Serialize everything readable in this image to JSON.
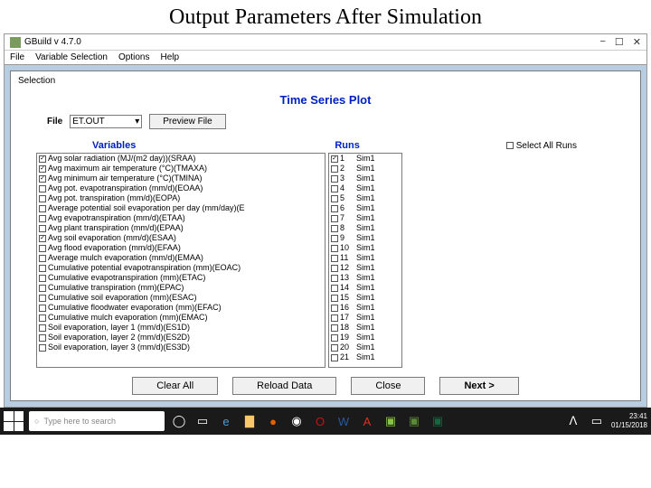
{
  "slide_title": "Output Parameters After Simulation",
  "window": {
    "title": "GBuild v 4.7.0",
    "menus": [
      "File",
      "Variable Selection",
      "Options",
      "Help"
    ]
  },
  "panel": {
    "label": "Selection",
    "plot_title": "Time Series Plot",
    "file_label": "File",
    "file_value": "ET.OUT",
    "preview_btn": "Preview File",
    "variables_header": "Variables",
    "runs_header": "Runs",
    "select_all_label": "Select All Runs"
  },
  "variables": [
    {
      "c": true,
      "t": "Avg solar radiation (MJ/(m2 day))(SRAA)"
    },
    {
      "c": true,
      "t": "Avg maximum air temperature (°C)(TMAXA)"
    },
    {
      "c": true,
      "t": "Avg minimum air temperature (°C)(TMINA)"
    },
    {
      "c": false,
      "t": "Avg pot. evapotranspiration (mm/d)(EOAA)"
    },
    {
      "c": false,
      "t": "Avg pot. transpiration (mm/d)(EOPA)"
    },
    {
      "c": false,
      "t": "Average potential soil evaporation per day  (mm/day)(E"
    },
    {
      "c": false,
      "t": "Avg evapotranspiration (mm/d)(ETAA)"
    },
    {
      "c": false,
      "t": "Avg plant transpiration (mm/d)(EPAA)"
    },
    {
      "c": true,
      "t": "Avg soil evaporation (mm/d)(ESAA)"
    },
    {
      "c": false,
      "t": "Avg flood evaporation (mm/d)(EFAA)"
    },
    {
      "c": false,
      "t": "Average mulch evaporation (mm/d)(EMAA)"
    },
    {
      "c": false,
      "t": "Cumulative potential evapotranspiration (mm)(EOAC)"
    },
    {
      "c": false,
      "t": "Cumulative evapotranspiration (mm)(ETAC)"
    },
    {
      "c": false,
      "t": "Cumulative transpiration (mm)(EPAC)"
    },
    {
      "c": false,
      "t": "Cumulative soil evaporation (mm)(ESAC)"
    },
    {
      "c": false,
      "t": "Cumulative floodwater evaporation (mm)(EFAC)"
    },
    {
      "c": false,
      "t": "Cumulative mulch evaporation (mm)(EMAC)"
    },
    {
      "c": false,
      "t": "Soil evaporation, layer 1 (mm/d)(ES1D)"
    },
    {
      "c": false,
      "t": "Soil evaporation, layer 2 (mm/d)(ES2D)"
    },
    {
      "c": false,
      "t": "Soil evaporation, layer 3 (mm/d)(ES3D)"
    }
  ],
  "runs": [
    {
      "c": true,
      "n": "1",
      "t": "Sim1"
    },
    {
      "c": false,
      "n": "2",
      "t": "Sim1"
    },
    {
      "c": false,
      "n": "3",
      "t": "Sim1"
    },
    {
      "c": false,
      "n": "4",
      "t": "Sim1"
    },
    {
      "c": false,
      "n": "5",
      "t": "Sim1"
    },
    {
      "c": false,
      "n": "6",
      "t": "Sim1"
    },
    {
      "c": false,
      "n": "7",
      "t": "Sim1"
    },
    {
      "c": false,
      "n": "8",
      "t": "Sim1"
    },
    {
      "c": false,
      "n": "9",
      "t": "Sim1"
    },
    {
      "c": false,
      "n": "10",
      "t": "Sim1"
    },
    {
      "c": false,
      "n": "11",
      "t": "Sim1"
    },
    {
      "c": false,
      "n": "12",
      "t": "Sim1"
    },
    {
      "c": false,
      "n": "13",
      "t": "Sim1"
    },
    {
      "c": false,
      "n": "14",
      "t": "Sim1"
    },
    {
      "c": false,
      "n": "15",
      "t": "Sim1"
    },
    {
      "c": false,
      "n": "16",
      "t": "Sim1"
    },
    {
      "c": false,
      "n": "17",
      "t": "Sim1"
    },
    {
      "c": false,
      "n": "18",
      "t": "Sim1"
    },
    {
      "c": false,
      "n": "19",
      "t": "Sim1"
    },
    {
      "c": false,
      "n": "20",
      "t": "Sim1"
    },
    {
      "c": false,
      "n": "21",
      "t": "Sim1"
    }
  ],
  "buttons": {
    "clear": "Clear All",
    "reload": "Reload Data",
    "close": "Close",
    "next": "Next >"
  },
  "taskbar": {
    "search_placeholder": "Type here to search",
    "time": "23:41",
    "date": "01/15/2018"
  }
}
